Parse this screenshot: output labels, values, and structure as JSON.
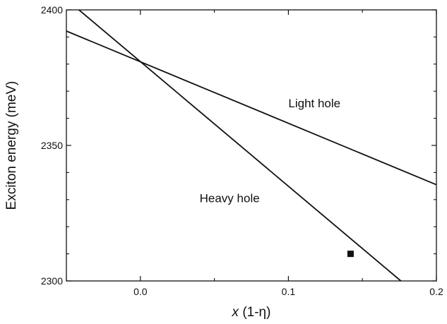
{
  "chart_data": {
    "type": "line",
    "title": "",
    "xlabel_italic": "x",
    "xlabel_rest": " (1-η)",
    "ylabel": "Exciton energy (meV)",
    "xlim": [
      -0.05,
      0.2
    ],
    "ylim": [
      2300,
      2400
    ],
    "x_ticks": [
      0.0,
      0.1,
      0.2
    ],
    "x_tick_labels": [
      "0.0",
      "0.1",
      "0.2"
    ],
    "y_ticks": [
      2300,
      2350,
      2400
    ],
    "y_tick_labels": [
      "2300",
      "2350",
      "2400"
    ],
    "grid": false,
    "legend": "none",
    "series": [
      {
        "x": [
          -0.0415,
          0.176
        ],
        "y": [
          2400,
          2300
        ]
      },
      {
        "x": [
          -0.05,
          0.2
        ],
        "y": [
          2392.2,
          2335.5
        ]
      }
    ],
    "points": [
      {
        "x": 0.142,
        "y": 2310
      }
    ],
    "annotations": [
      {
        "text": "Light hole",
        "x": 0.1,
        "y": 2364
      },
      {
        "text": "Heavy hole",
        "x": 0.04,
        "y": 2329
      }
    ],
    "line_color": "#111111"
  }
}
